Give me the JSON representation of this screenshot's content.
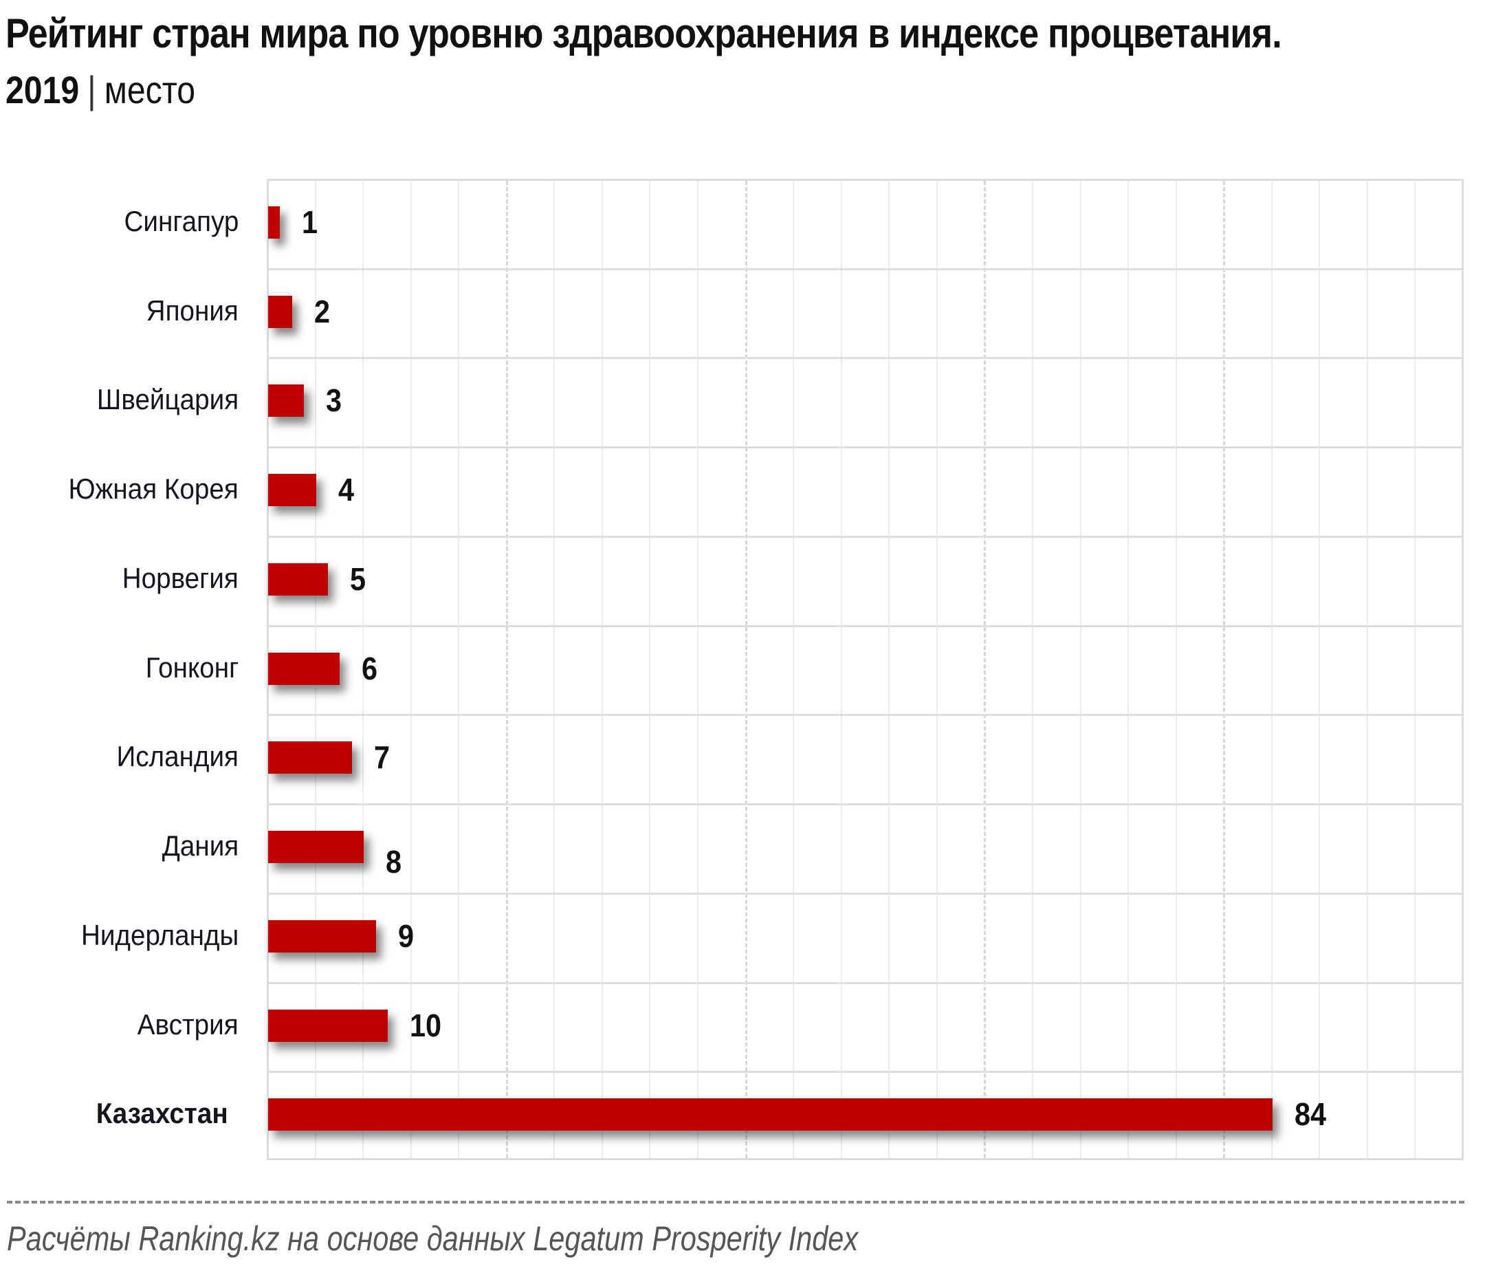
{
  "header": {
    "title": "Рейтинг стран мира по уровню здравоохранения в индексе процветания.",
    "year": "2019",
    "separator": "|",
    "unit": "место"
  },
  "footer": {
    "source": "Расчёты Ranking.kz на основе данных  Legatum  Prosperity Index"
  },
  "colors": {
    "bar": "#C00000",
    "grid": "#ececec",
    "grid_major": "#d6d6d6",
    "text": "#111111"
  },
  "chart_data": {
    "type": "bar",
    "orientation": "horizontal",
    "title": "Рейтинг стран мира по уровню здравоохранения в индексе процветания. 2019 | место",
    "xlabel": "",
    "ylabel": "",
    "categories": [
      "Сингапур",
      "Япония",
      "Швейцария",
      "Южная Корея",
      "Норвегия",
      "Гонконг",
      "Исландия",
      "Дания",
      "Нидерланды",
      "Австрия",
      "Казахстан"
    ],
    "values": [
      1,
      2,
      3,
      4,
      5,
      6,
      7,
      8,
      9,
      10,
      84
    ],
    "value_labels": [
      "1",
      "2",
      "3",
      "4",
      "5",
      "6",
      "7",
      "8",
      "9",
      "10",
      "84"
    ],
    "highlighted_category": "Казахстан",
    "xlim": [
      0,
      100
    ],
    "grid": {
      "vertical_minor_step": 4,
      "vertical_major_step": 20,
      "horizontal_row_separators": true
    },
    "axis_tick_labels_shown": false,
    "legend": null,
    "source": "Расчёты Ranking.kz на основе данных Legatum Prosperity Index"
  }
}
